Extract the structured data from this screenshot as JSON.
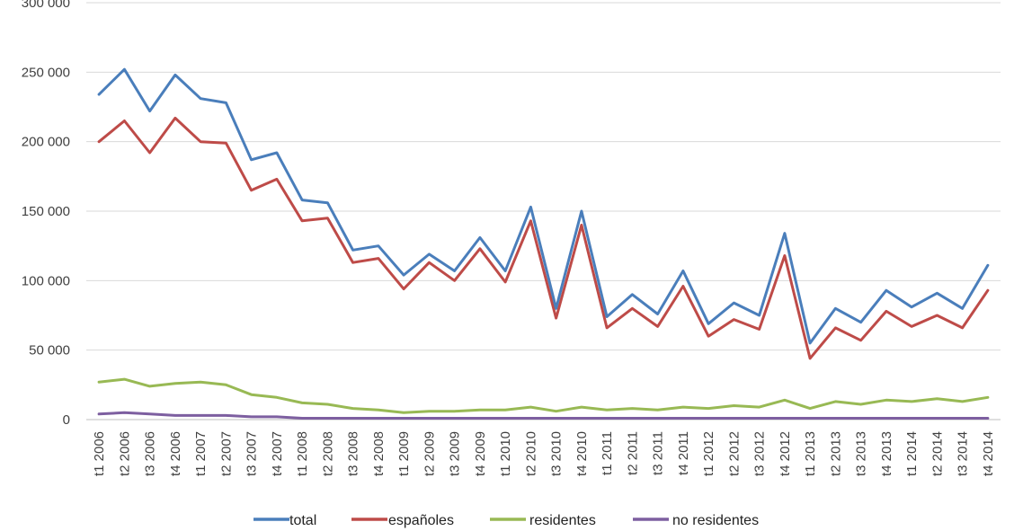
{
  "chart_data": {
    "type": "line",
    "title": "",
    "xlabel": "",
    "ylabel": "",
    "ylim": [
      0,
      300000
    ],
    "yticks": [
      {
        "value": 0,
        "label": "0"
      },
      {
        "value": 50000,
        "label": "50 000"
      },
      {
        "value": 100000,
        "label": "100 000"
      },
      {
        "value": 150000,
        "label": "150 000"
      },
      {
        "value": 200000,
        "label": "200 000"
      },
      {
        "value": 250000,
        "label": "250 000"
      },
      {
        "value": 300000,
        "label": "300 000"
      }
    ],
    "grid": true,
    "legend_position": "bottom",
    "categories": [
      "t1 2006",
      "t2 2006",
      "t3 2006",
      "t4 2006",
      "t1 2007",
      "t2 2007",
      "t3 2007",
      "t4 2007",
      "t1 2008",
      "t2 2008",
      "t3 2008",
      "t4 2008",
      "t1 2009",
      "t2 2009",
      "t3 2009",
      "t4 2009",
      "t1 2010",
      "t2 2010",
      "t3 2010",
      "t4 2010",
      "t1 2011",
      "t2 2011",
      "t3 2011",
      "t4 2011",
      "t1 2012",
      "t2 2012",
      "t3 2012",
      "t4 2012",
      "t1 2013",
      "t2 2013",
      "t3 2013",
      "t4 2013",
      "t1 2014",
      "t2 2014",
      "t3 2014",
      "t4 2014"
    ],
    "series": [
      {
        "name": "total",
        "color": "#4a7ebb",
        "values": [
          234000,
          252000,
          222000,
          248000,
          231000,
          228000,
          187000,
          192000,
          158000,
          156000,
          122000,
          125000,
          104000,
          119000,
          107000,
          131000,
          107000,
          153000,
          80000,
          150000,
          74000,
          90000,
          76000,
          107000,
          69000,
          84000,
          75000,
          134000,
          55000,
          80000,
          70000,
          93000,
          81000,
          91000,
          80000,
          111000
        ]
      },
      {
        "name": "españoles",
        "color": "#be4b48",
        "values": [
          200000,
          215000,
          192000,
          217000,
          200000,
          199000,
          165000,
          173000,
          143000,
          145000,
          113000,
          116000,
          94000,
          113000,
          100000,
          123000,
          99000,
          143000,
          73000,
          140000,
          66000,
          80000,
          67000,
          96000,
          60000,
          72000,
          65000,
          118000,
          44000,
          66000,
          57000,
          78000,
          67000,
          75000,
          66000,
          93000
        ]
      },
      {
        "name": "residentes",
        "color": "#98b954",
        "values": [
          27000,
          29000,
          24000,
          26000,
          27000,
          25000,
          18000,
          16000,
          12000,
          11000,
          8000,
          7000,
          5000,
          6000,
          6000,
          7000,
          7000,
          9000,
          6000,
          9000,
          7000,
          8000,
          7000,
          9000,
          8000,
          10000,
          9000,
          14000,
          8000,
          13000,
          11000,
          14000,
          13000,
          15000,
          13000,
          16000
        ]
      },
      {
        "name": "no residentes",
        "color": "#7d5fa0",
        "values": [
          4000,
          5000,
          4000,
          3000,
          3000,
          3000,
          2000,
          2000,
          1000,
          1000,
          1000,
          1000,
          1000,
          1000,
          1000,
          1000,
          1000,
          1000,
          1000,
          1000,
          1000,
          1000,
          1000,
          1000,
          1000,
          1000,
          1000,
          1000,
          1000,
          1000,
          1000,
          1000,
          1000,
          1000,
          1000,
          1000
        ]
      }
    ]
  }
}
